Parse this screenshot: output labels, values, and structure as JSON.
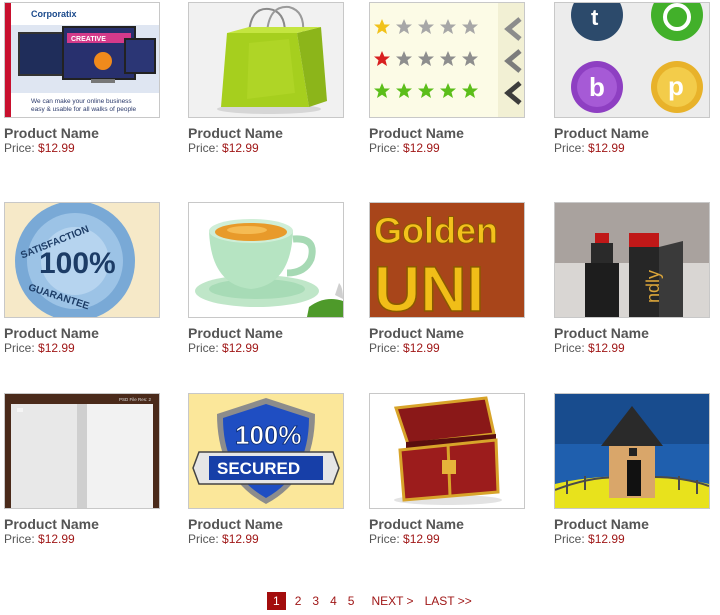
{
  "products": [
    {
      "name": "Product Name",
      "price_label": "Price:",
      "price": "$12.99",
      "image": "website-template-monitors",
      "overlay": [
        "Corporatix",
        "CREATIVE",
        "We can make your online business",
        "easy & usable for all walks of people"
      ]
    },
    {
      "name": "Product Name",
      "price_label": "Price:",
      "price": "$12.99",
      "image": "green-shopping-bag",
      "overlay": []
    },
    {
      "name": "Product Name",
      "price_label": "Price:",
      "price": "$12.99",
      "image": "star-rating-widget",
      "overlay": []
    },
    {
      "name": "Product Name",
      "price_label": "Price:",
      "price": "$12.99",
      "image": "social-icon-circles",
      "overlay": [
        "t",
        "b",
        "p"
      ]
    },
    {
      "name": "Product Name",
      "price_label": "Price:",
      "price": "$12.99",
      "image": "satisfaction-seal",
      "overlay": [
        "SATISFACTION",
        "100%",
        "GUARANTEE"
      ]
    },
    {
      "name": "Product Name",
      "price_label": "Price:",
      "price": "$12.99",
      "image": "tea-cup",
      "overlay": []
    },
    {
      "name": "Product Name",
      "price_label": "Price:",
      "price": "$12.99",
      "image": "golden-text",
      "overlay": [
        "Golden",
        "UNI"
      ]
    },
    {
      "name": "Product Name",
      "price_label": "Price:",
      "price": "$12.99",
      "image": "wine-bottle-box",
      "overlay": [
        "ndly"
      ]
    },
    {
      "name": "Product Name",
      "price_label": "Price:",
      "price": "$12.99",
      "image": "open-book",
      "overlay": [
        "PSD File  Res: 2"
      ]
    },
    {
      "name": "Product Name",
      "price_label": "Price:",
      "price": "$12.99",
      "image": "secured-shield",
      "overlay": [
        "100%",
        "SECURED"
      ]
    },
    {
      "name": "Product Name",
      "price_label": "Price:",
      "price": "$12.99",
      "image": "treasure-chest",
      "overlay": []
    },
    {
      "name": "Product Name",
      "price_label": "Price:",
      "price": "$12.99",
      "image": "cartoon-house",
      "overlay": []
    }
  ],
  "pagination": {
    "current": "1",
    "pages": [
      "2",
      "3",
      "4",
      "5"
    ],
    "next": "NEXT >",
    "last": "LAST >>"
  },
  "colors": {
    "accent": "#a30d0d",
    "price": "#a01818",
    "text": "#555555"
  }
}
